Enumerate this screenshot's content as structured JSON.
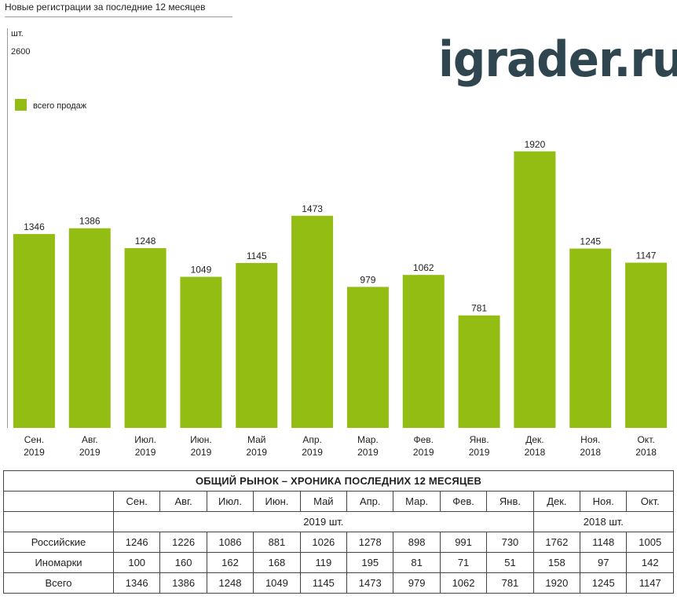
{
  "page_title": "Новые регистрации за последние 12 месяцев",
  "watermark": "igrader.ru",
  "chart_data": {
    "type": "bar",
    "unit_label": "шт.",
    "ymax_label": "2600",
    "ylim": [
      0,
      2600
    ],
    "grid": false,
    "legend_position": "top-left",
    "colors": {
      "bar": "#94bd14",
      "legend": "#94bd14"
    },
    "categories": [
      [
        "Сен.",
        "2019"
      ],
      [
        "Авг.",
        "2019"
      ],
      [
        "Июл.",
        "2019"
      ],
      [
        "Июн.",
        "2019"
      ],
      [
        "Май",
        "2019"
      ],
      [
        "Апр.",
        "2019"
      ],
      [
        "Мар.",
        "2019"
      ],
      [
        "Фев.",
        "2019"
      ],
      [
        "Янв.",
        "2019"
      ],
      [
        "Дек.",
        "2018"
      ],
      [
        "Ноя.",
        "2018"
      ],
      [
        "Окт.",
        "2018"
      ]
    ],
    "series": [
      {
        "name": "всего продаж",
        "values": [
          1346,
          1386,
          1248,
          1049,
          1145,
          1473,
          979,
          1062,
          781,
          1920,
          1245,
          1147
        ]
      }
    ]
  },
  "table": {
    "title": "ОБЩИЙ РЫНОК – ХРОНИКА ПОСЛЕДНИХ 12 МЕСЯЦЕВ",
    "months": [
      "Сен.",
      "Авг.",
      "Июл.",
      "Июн.",
      "Май",
      "Апр.",
      "Мар.",
      "Фев.",
      "Янв.",
      "Дек.",
      "Ноя.",
      "Окт."
    ],
    "year_2019": "2019 шт.",
    "year_2018": "2018 шт.",
    "rows": [
      {
        "label": "Российские",
        "values": [
          "1246",
          "1226",
          "1086",
          "881",
          "1026",
          "1278",
          "898",
          "991",
          "730",
          "1762",
          "1148",
          "1005"
        ]
      },
      {
        "label": "Иномарки",
        "values": [
          "100",
          "160",
          "162",
          "168",
          "119",
          "195",
          "81",
          "71",
          "51",
          "158",
          "97",
          "142"
        ]
      },
      {
        "label": "Всего",
        "values": [
          "1346",
          "1386",
          "1248",
          "1049",
          "1145",
          "1473",
          "979",
          "1062",
          "781",
          "1920",
          "1245",
          "1147"
        ]
      }
    ]
  }
}
